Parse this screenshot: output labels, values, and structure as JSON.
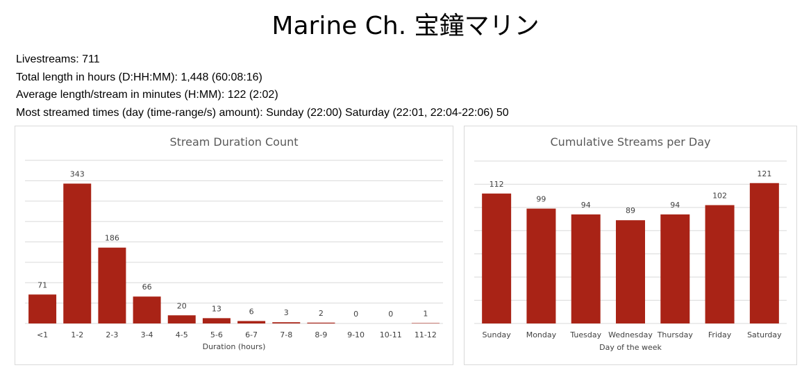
{
  "page_title": "Marine Ch. 宝鐘マリン",
  "stats": [
    "Livestreams: 711",
    "Total length in hours (D:HH:MM): 1,448 (60:08:16)",
    "Average length/stream in minutes (H:MM): 122 (2:02)",
    "Most streamed times (day (time-range/s) amount): Sunday (22:00) Saturday (22:01, 22:04-22:06) 50"
  ],
  "colors": {
    "bar": "#a92316",
    "gridline": "#d9d9d9",
    "title_text": "#595959",
    "label_text": "#404040"
  },
  "chart_data": [
    {
      "type": "bar",
      "title": "Stream Duration Count",
      "xlabel": "Duration (hours)",
      "ylabel": "",
      "categories": [
        "<1",
        "1-2",
        "2-3",
        "3-4",
        "4-5",
        "5-6",
        "6-7",
        "7-8",
        "8-9",
        "9-10",
        "10-11",
        "11-12"
      ],
      "values": [
        71,
        343,
        186,
        66,
        20,
        13,
        6,
        3,
        2,
        0,
        0,
        1
      ],
      "ylim": [
        0,
        400
      ],
      "gridlines": true,
      "data_labels": true,
      "legend": "none"
    },
    {
      "type": "bar",
      "title": "Cumulative Streams per Day",
      "xlabel": "Day of the week",
      "ylabel": "",
      "categories": [
        "Sunday",
        "Monday",
        "Tuesday",
        "Wednesday",
        "Thursday",
        "Friday",
        "Saturday"
      ],
      "values": [
        112,
        99,
        94,
        89,
        94,
        102,
        121
      ],
      "ylim": [
        0,
        140
      ],
      "gridlines": true,
      "data_labels": true,
      "legend": "none"
    }
  ]
}
